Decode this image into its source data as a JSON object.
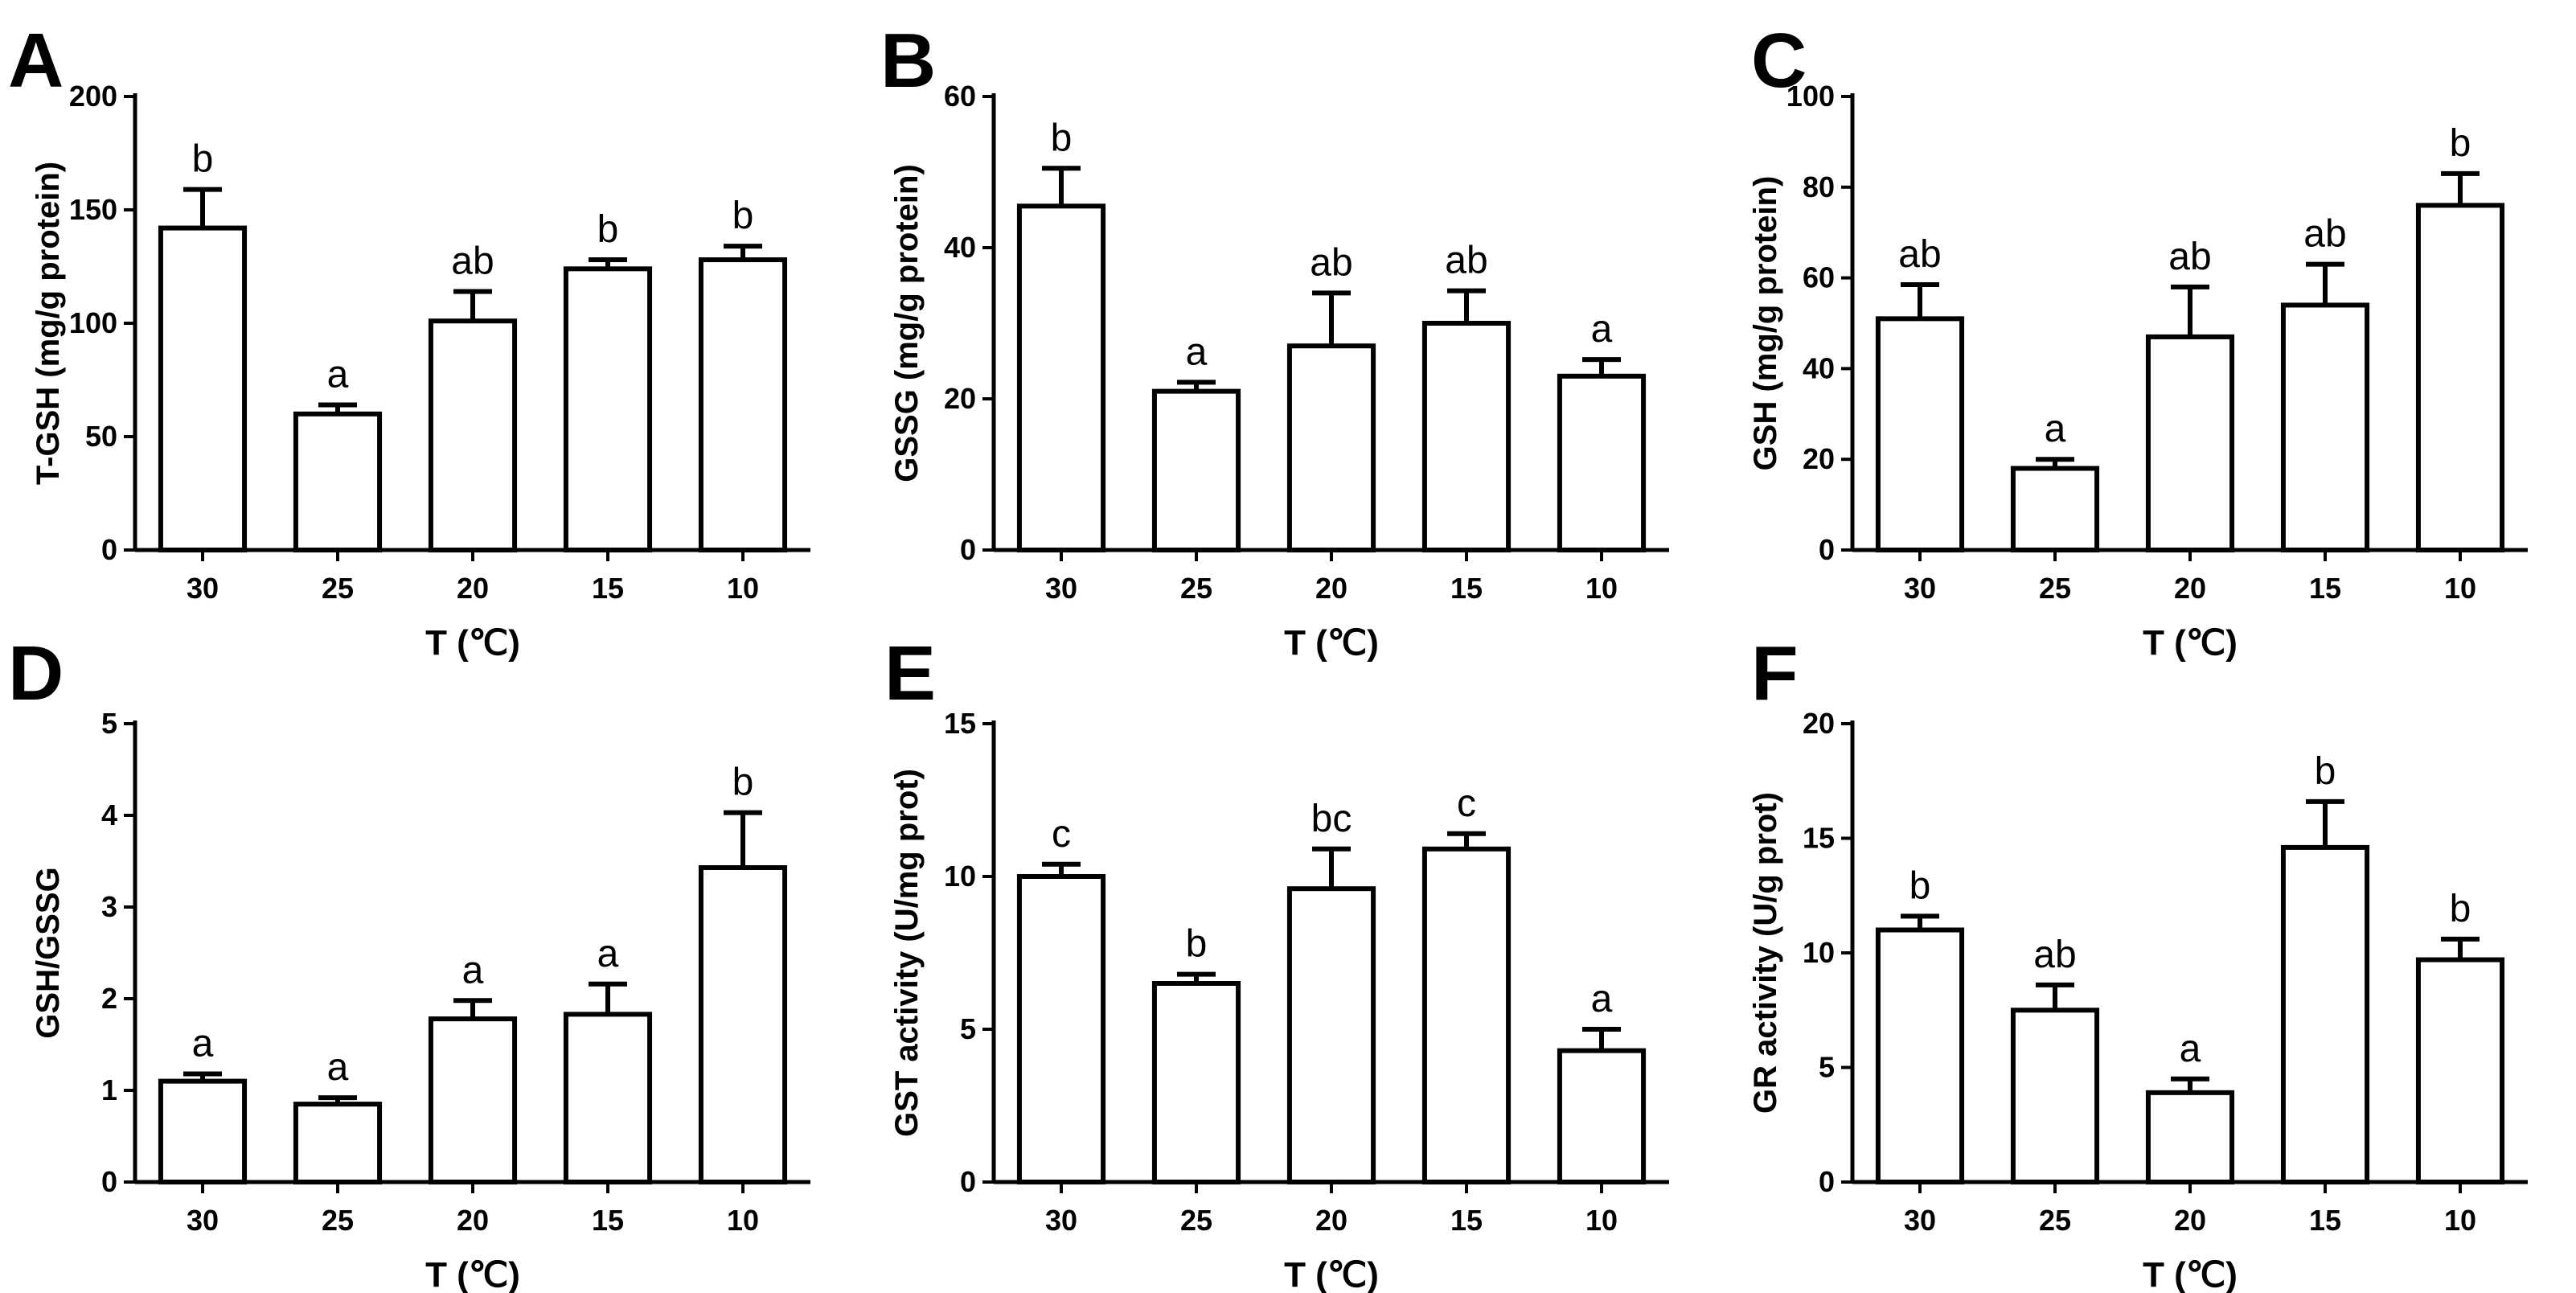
{
  "chart_data": [
    {
      "panel": "A",
      "type": "bar",
      "title": "",
      "categories": [
        "30",
        "25",
        "20",
        "15",
        "10"
      ],
      "values": [
        142,
        60,
        101,
        124,
        128
      ],
      "errors": [
        17,
        4,
        13,
        4,
        6
      ],
      "significance": [
        "b",
        "a",
        "ab",
        "b",
        "b"
      ],
      "xlabel": "T (℃)",
      "ylabel": "T-GSH (mg/g protein)",
      "ylim": [
        0,
        200
      ],
      "yticks": [
        "0",
        "50",
        "100",
        "150",
        "200"
      ]
    },
    {
      "panel": "B",
      "type": "bar",
      "title": "",
      "categories": [
        "30",
        "25",
        "20",
        "15",
        "10"
      ],
      "values": [
        45.5,
        21,
        27,
        30,
        23
      ],
      "errors": [
        5,
        1.2,
        7,
        4.3,
        2.2
      ],
      "significance": [
        "b",
        "a",
        "ab",
        "ab",
        "a"
      ],
      "xlabel": "T (℃)",
      "ylabel": "GSSG (mg/g protein)",
      "ylim": [
        0,
        60
      ],
      "yticks": [
        "0",
        "20",
        "40",
        "60"
      ]
    },
    {
      "panel": "C",
      "type": "bar",
      "title": "",
      "categories": [
        "30",
        "25",
        "20",
        "15",
        "10"
      ],
      "values": [
        51,
        18,
        47,
        54,
        76
      ],
      "errors": [
        7.5,
        2,
        11,
        9,
        7
      ],
      "significance": [
        "ab",
        "a",
        "ab",
        "ab",
        "b"
      ],
      "xlabel": "T (℃)",
      "ylabel": "GSH (mg/g protein)",
      "ylim": [
        0,
        100
      ],
      "yticks": [
        "0",
        "20",
        "40",
        "60",
        "80",
        "100"
      ]
    },
    {
      "panel": "D",
      "type": "bar",
      "title": "",
      "categories": [
        "30",
        "25",
        "20",
        "15",
        "10"
      ],
      "values": [
        1.1,
        0.85,
        1.78,
        1.83,
        3.43
      ],
      "errors": [
        0.08,
        0.07,
        0.2,
        0.33,
        0.6
      ],
      "significance": [
        "a",
        "a",
        "a",
        "a",
        "b"
      ],
      "xlabel": "T (℃)",
      "ylabel": "GSH/GSSG",
      "ylim": [
        0,
        5
      ],
      "yticks": [
        "0",
        "1",
        "2",
        "3",
        "4",
        "5"
      ]
    },
    {
      "panel": "E",
      "type": "bar",
      "title": "",
      "categories": [
        "30",
        "25",
        "20",
        "15",
        "10"
      ],
      "values": [
        10,
        6.5,
        9.6,
        10.9,
        4.3
      ],
      "errors": [
        0.4,
        0.3,
        1.3,
        0.5,
        0.7
      ],
      "significance": [
        "c",
        "b",
        "bc",
        "c",
        "a"
      ],
      "xlabel": "T (℃)",
      "ylabel": "GST activity (U/mg prot)",
      "ylim": [
        0,
        15
      ],
      "yticks": [
        "0",
        "5",
        "10",
        "15"
      ]
    },
    {
      "panel": "F",
      "type": "bar",
      "title": "",
      "categories": [
        "30",
        "25",
        "20",
        "15",
        "10"
      ],
      "values": [
        11,
        7.5,
        3.9,
        14.6,
        9.7
      ],
      "errors": [
        0.6,
        1.1,
        0.6,
        2,
        0.9
      ],
      "significance": [
        "b",
        "ab",
        "a",
        "b",
        "b"
      ],
      "xlabel": "T (℃)",
      "ylabel": "GR activity (U/g prot)",
      "ylim": [
        0,
        20
      ],
      "yticks": [
        "0",
        "5",
        "10",
        "15",
        "20"
      ]
    }
  ]
}
